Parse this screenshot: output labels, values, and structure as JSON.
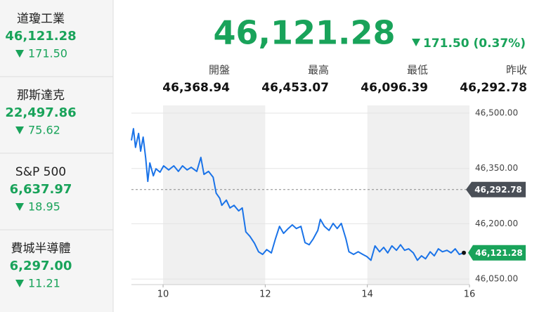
{
  "sidebar": [
    {
      "name": "道瓊工業",
      "price": "46,121.28",
      "change": "171.50"
    },
    {
      "name": "那斯達克",
      "price": "22,497.86",
      "change": "75.62"
    },
    {
      "name": "S&P 500",
      "price": "6,637.97",
      "change": "18.95"
    },
    {
      "name": "費城半導體",
      "price": "6,297.00",
      "change": "11.21"
    }
  ],
  "header": {
    "price": "46,121.28",
    "change": "171.50 (0.37%)"
  },
  "stats": [
    {
      "label": "開盤",
      "value": "46,368.94"
    },
    {
      "label": "最高",
      "value": "46,453.07"
    },
    {
      "label": "最低",
      "value": "46,096.39"
    },
    {
      "label": "昨收",
      "value": "46,292.78"
    }
  ],
  "chart_data": {
    "type": "line",
    "x": [
      9.38,
      9.42,
      9.46,
      9.52,
      9.56,
      9.61,
      9.66,
      9.7,
      9.74,
      9.81,
      9.86,
      9.94,
      10.01,
      10.11,
      10.21,
      10.3,
      10.38,
      10.47,
      10.55,
      10.66,
      10.74,
      10.8,
      10.89,
      10.98,
      11.04,
      11.11,
      11.15,
      11.24,
      11.31,
      11.39,
      11.48,
      11.55,
      11.62,
      11.7,
      11.79,
      11.87,
      11.95,
      12.03,
      12.12,
      12.2,
      12.28,
      12.36,
      12.45,
      12.53,
      12.61,
      12.7,
      12.78,
      12.86,
      12.94,
      13.03,
      13.08,
      13.16,
      13.25,
      13.33,
      13.41,
      13.49,
      13.58,
      13.64,
      13.73,
      13.82,
      13.91,
      13.99,
      14.07,
      14.15,
      14.24,
      14.32,
      14.4,
      14.48,
      14.57,
      14.65,
      14.73,
      14.81,
      14.9,
      14.98,
      15.06,
      15.14,
      15.23,
      15.31,
      15.39,
      15.47,
      15.56,
      15.64,
      15.72,
      15.8,
      15.89
    ],
    "series": [
      {
        "color": "#1a73e8",
        "values": [
          46426,
          46458,
          46407,
          46445,
          46397,
          46435,
          46378,
          46315,
          46365,
          46330,
          46349,
          46340,
          46357,
          46346,
          46357,
          46342,
          46357,
          46346,
          46353,
          46342,
          46380,
          46334,
          46342,
          46326,
          46283,
          46269,
          46250,
          46264,
          46243,
          46250,
          46235,
          46243,
          46178,
          46166,
          46147,
          46124,
          46117,
          46130,
          46121,
          46159,
          46193,
          46174,
          46187,
          46197,
          46187,
          46193,
          46149,
          46143,
          46159,
          46182,
          46212,
          46193,
          46182,
          46201,
          46187,
          46201,
          46159,
          46124,
          46117,
          46124,
          46117,
          46111,
          46101,
          46140,
          46124,
          46136,
          46121,
          46140,
          46128,
          46143,
          46128,
          46132,
          46121,
          46101,
          46113,
          46105,
          46124,
          46113,
          46132,
          46124,
          46128,
          46121,
          46132,
          46117,
          46121.28
        ]
      }
    ],
    "xlim": [
      9.38,
      16
    ],
    "xticks": [
      10,
      12,
      14,
      16
    ],
    "ylim": [
      46035,
      46521
    ],
    "yticks": [
      {
        "value": 46500,
        "label": "46,500.00"
      },
      {
        "value": 46350,
        "label": "46,350.00"
      },
      {
        "value": 46200,
        "label": "46,200.00"
      },
      {
        "value": 46050,
        "label": "46,050.00"
      }
    ],
    "reference_line": {
      "value": 46292.78,
      "label": "46,292.78"
    },
    "current": {
      "value": 46121.28,
      "label": "46,121.28"
    },
    "grid": true
  }
}
